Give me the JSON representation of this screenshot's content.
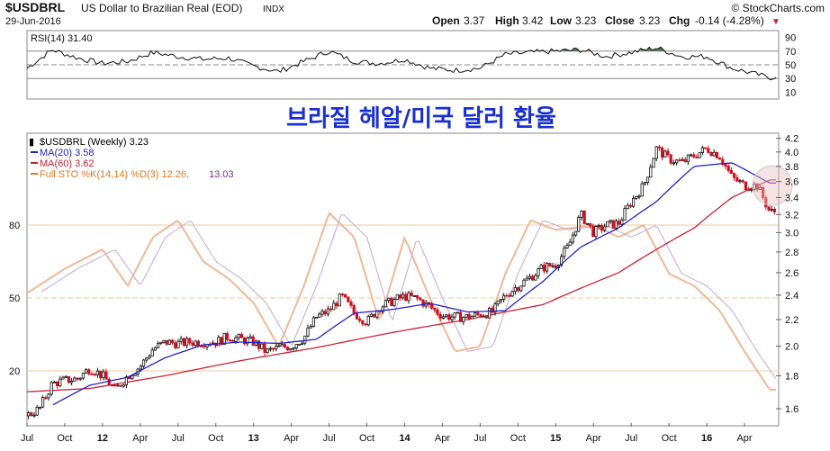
{
  "header": {
    "symbol": "$USDBRL",
    "description": "US Dollar to Brazilian Real (EOD)",
    "exchange": "INDX",
    "date": "29-Jun-2016",
    "watermark": "© StockCharts.com",
    "open_label": "Open",
    "open_value": "3.37",
    "high_label": "High",
    "high_value": "3.42",
    "low_label": "Low",
    "low_value": "3.23",
    "close_label": "Close",
    "close_value": "3.23",
    "chg_label": "Chg",
    "chg_value": "-0.14 (-4.28%)",
    "chg_marker": "▼"
  },
  "overlay_title": "브라질 헤알/미국 달러 환율",
  "rsi_panel": {
    "label": "RSI(14) 31.40",
    "ticks": [
      "90",
      "70",
      "50",
      "30",
      "10"
    ],
    "overbought_fill": "#4a7c4a"
  },
  "price_panel": {
    "legend": [
      {
        "text": "$USDBRL (Weekly) 3.23",
        "color": "#000000"
      },
      {
        "text": "MA(20) 3.58",
        "color": "#2222cc"
      },
      {
        "text": "MA(60) 3.62",
        "color": "#cc2233"
      },
      {
        "text": "Full STO %K(14,14) %D(3) 12.26, ",
        "color": "#e07a20"
      },
      {
        "text": "13.03",
        "color": "#7a2a9a"
      }
    ],
    "right_ticks": [
      "4.2",
      "4.0",
      "3.8",
      "3.6",
      "3.4",
      "3.2",
      "3.0",
      "2.8",
      "2.6",
      "2.4",
      "2.2",
      "2.0",
      "1.8",
      "1.6"
    ],
    "left_ticks": [
      "80",
      "50",
      "20"
    ],
    "x_labels": [
      "Jul",
      "Oct",
      "12",
      "Apr",
      "Jul",
      "Oct",
      "13",
      "Apr",
      "Jul",
      "Oct",
      "14",
      "Apr",
      "Jul",
      "Oct",
      "15",
      "Apr",
      "Jul",
      "Oct",
      "16",
      "Apr"
    ],
    "bold_year_labels": [
      "12",
      "13",
      "14",
      "15",
      "16"
    ]
  },
  "chart_data": {
    "type": "candlestick",
    "period": "weekly",
    "price_scale": "log",
    "price_range": [
      1.52,
      4.25
    ],
    "rsi_range": [
      0,
      100
    ],
    "sto_range": [
      0,
      100
    ],
    "price": [
      [
        "2011-07",
        1.56
      ],
      [
        "2011-08",
        1.6
      ],
      [
        "2011-09",
        1.75
      ],
      [
        "2011-10",
        1.77
      ],
      [
        "2011-11",
        1.78
      ],
      [
        "2011-12",
        1.85
      ],
      [
        "2012-01",
        1.8
      ],
      [
        "2012-02",
        1.71
      ],
      [
        "2012-03",
        1.8
      ],
      [
        "2012-04",
        1.86
      ],
      [
        "2012-05",
        1.98
      ],
      [
        "2012-06",
        2.03
      ],
      [
        "2012-07",
        2.02
      ],
      [
        "2012-08",
        2.03
      ],
      [
        "2012-09",
        2.03
      ],
      [
        "2012-10",
        2.03
      ],
      [
        "2012-11",
        2.07
      ],
      [
        "2012-12",
        2.05
      ],
      [
        "2013-01",
        2.03
      ],
      [
        "2013-02",
        1.96
      ],
      [
        "2013-03",
        1.99
      ],
      [
        "2013-04",
        2.0
      ],
      [
        "2013-05",
        2.06
      ],
      [
        "2013-06",
        2.22
      ],
      [
        "2013-07",
        2.27
      ],
      [
        "2013-08",
        2.39
      ],
      [
        "2013-09",
        2.25
      ],
      [
        "2013-10",
        2.18
      ],
      [
        "2013-11",
        2.3
      ],
      [
        "2013-12",
        2.35
      ],
      [
        "2014-01",
        2.39
      ],
      [
        "2014-02",
        2.37
      ],
      [
        "2014-03",
        2.3
      ],
      [
        "2014-04",
        2.23
      ],
      [
        "2014-05",
        2.22
      ],
      [
        "2014-06",
        2.22
      ],
      [
        "2014-07",
        2.24
      ],
      [
        "2014-08",
        2.26
      ],
      [
        "2014-09",
        2.4
      ],
      [
        "2014-10",
        2.48
      ],
      [
        "2014-11",
        2.56
      ],
      [
        "2014-12",
        2.65
      ],
      [
        "2015-01",
        2.68
      ],
      [
        "2015-02",
        2.85
      ],
      [
        "2015-03",
        3.2
      ],
      [
        "2015-04",
        3.0
      ],
      [
        "2015-05",
        3.08
      ],
      [
        "2015-06",
        3.1
      ],
      [
        "2015-07",
        3.35
      ],
      [
        "2015-08",
        3.55
      ],
      [
        "2015-09",
        4.05
      ],
      [
        "2015-10",
        3.9
      ],
      [
        "2015-11",
        3.85
      ],
      [
        "2015-12",
        3.95
      ],
      [
        "2016-01",
        4.05
      ],
      [
        "2016-02",
        3.95
      ],
      [
        "2016-03",
        3.65
      ],
      [
        "2016-04",
        3.55
      ],
      [
        "2016-05",
        3.55
      ],
      [
        "2016-06",
        3.23
      ]
    ],
    "ma20": [
      [
        "2011-09",
        1.62
      ],
      [
        "2011-12",
        1.74
      ],
      [
        "2012-03",
        1.79
      ],
      [
        "2012-06",
        1.92
      ],
      [
        "2012-09",
        2.01
      ],
      [
        "2012-12",
        2.03
      ],
      [
        "2013-03",
        2.02
      ],
      [
        "2013-06",
        2.05
      ],
      [
        "2013-09",
        2.25
      ],
      [
        "2013-12",
        2.28
      ],
      [
        "2014-03",
        2.33
      ],
      [
        "2014-06",
        2.26
      ],
      [
        "2014-09",
        2.27
      ],
      [
        "2014-12",
        2.52
      ],
      [
        "2015-03",
        2.85
      ],
      [
        "2015-06",
        3.05
      ],
      [
        "2015-09",
        3.35
      ],
      [
        "2015-12",
        3.8
      ],
      [
        "2016-03",
        3.85
      ],
      [
        "2016-06",
        3.58
      ]
    ],
    "ma60": [
      [
        "2011-07",
        1.7
      ],
      [
        "2011-12",
        1.72
      ],
      [
        "2012-06",
        1.8
      ],
      [
        "2012-12",
        1.9
      ],
      [
        "2013-06",
        1.99
      ],
      [
        "2013-12",
        2.1
      ],
      [
        "2014-06",
        2.2
      ],
      [
        "2014-12",
        2.32
      ],
      [
        "2015-06",
        2.6
      ],
      [
        "2015-12",
        3.05
      ],
      [
        "2016-03",
        3.4
      ],
      [
        "2016-06",
        3.62
      ]
    ],
    "sto_k": [
      [
        "2011-07",
        52
      ],
      [
        "2011-10",
        62
      ],
      [
        "2012-01",
        70
      ],
      [
        "2012-03",
        55
      ],
      [
        "2012-05",
        75
      ],
      [
        "2012-07",
        82
      ],
      [
        "2012-09",
        65
      ],
      [
        "2012-11",
        58
      ],
      [
        "2013-01",
        48
      ],
      [
        "2013-03",
        30
      ],
      [
        "2013-05",
        55
      ],
      [
        "2013-07",
        85
      ],
      [
        "2013-09",
        75
      ],
      [
        "2013-11",
        40
      ],
      [
        "2014-01",
        75
      ],
      [
        "2014-03",
        50
      ],
      [
        "2014-05",
        28
      ],
      [
        "2014-07",
        30
      ],
      [
        "2014-09",
        60
      ],
      [
        "2014-11",
        82
      ],
      [
        "2015-01",
        78
      ],
      [
        "2015-04",
        80
      ],
      [
        "2015-06",
        75
      ],
      [
        "2015-08",
        80
      ],
      [
        "2015-10",
        60
      ],
      [
        "2015-12",
        55
      ],
      [
        "2016-02",
        45
      ],
      [
        "2016-04",
        28
      ],
      [
        "2016-06",
        12.26
      ]
    ],
    "rsi": [
      [
        "2011-07",
        45
      ],
      [
        "2011-09",
        72
      ],
      [
        "2011-11",
        60
      ],
      [
        "2012-01",
        52
      ],
      [
        "2012-03",
        55
      ],
      [
        "2012-05",
        68
      ],
      [
        "2012-07",
        62
      ],
      [
        "2012-09",
        58
      ],
      [
        "2012-11",
        60
      ],
      [
        "2013-01",
        48
      ],
      [
        "2013-03",
        40
      ],
      [
        "2013-05",
        55
      ],
      [
        "2013-07",
        70
      ],
      [
        "2013-09",
        55
      ],
      [
        "2013-11",
        52
      ],
      [
        "2014-01",
        58
      ],
      [
        "2014-03",
        45
      ],
      [
        "2014-05",
        42
      ],
      [
        "2014-07",
        45
      ],
      [
        "2014-09",
        65
      ],
      [
        "2014-11",
        68
      ],
      [
        "2015-01",
        70
      ],
      [
        "2015-03",
        72
      ],
      [
        "2015-05",
        62
      ],
      [
        "2015-07",
        68
      ],
      [
        "2015-09",
        75
      ],
      [
        "2015-11",
        62
      ],
      [
        "2016-01",
        62
      ],
      [
        "2016-03",
        45
      ],
      [
        "2016-06",
        31.4
      ]
    ]
  }
}
